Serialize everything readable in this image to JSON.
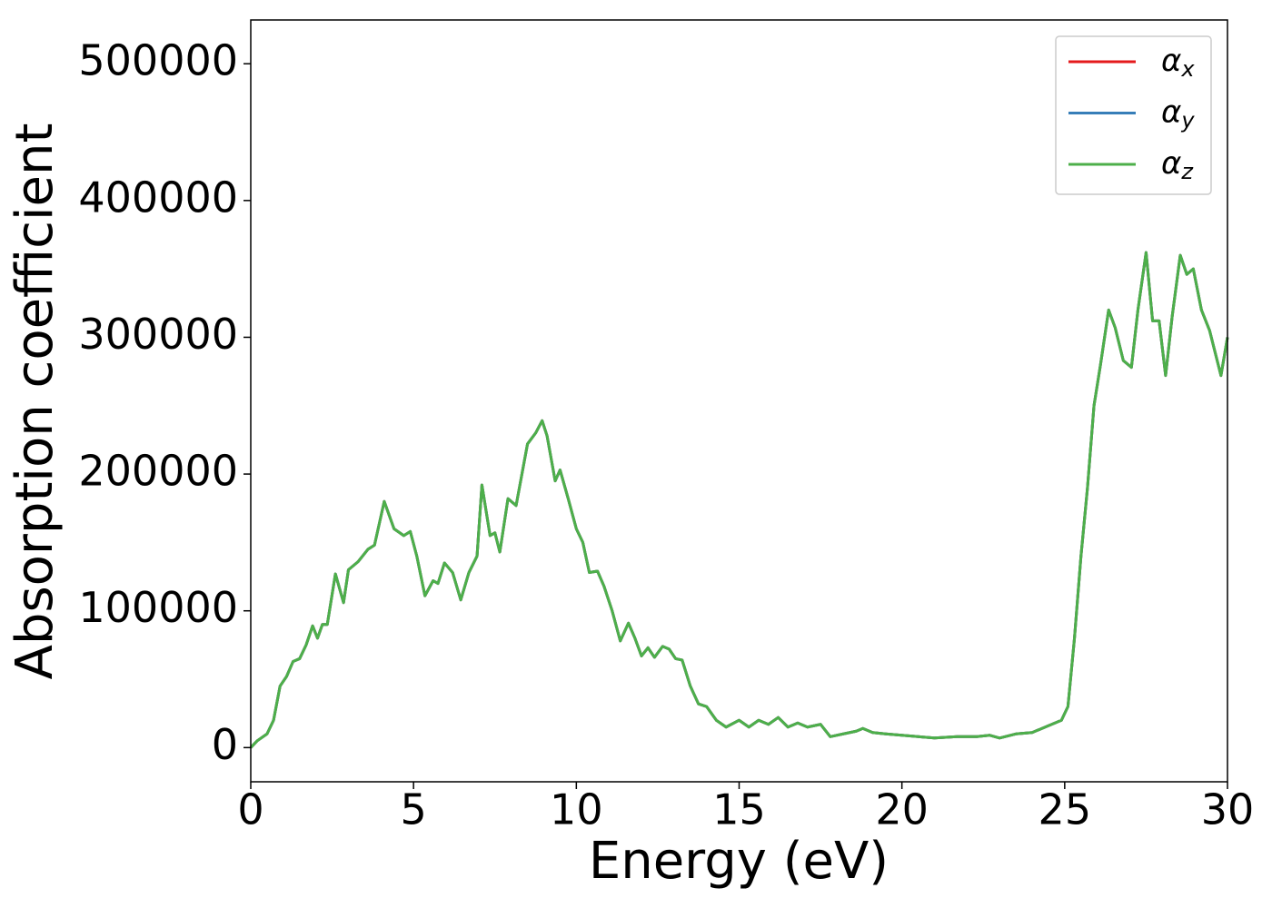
{
  "chart_data": {
    "type": "line",
    "x_label": "Energy (eV)",
    "y_label": "Absorption coefficient",
    "x": [
      0,
      0.2,
      0.5,
      0.7,
      0.9,
      1.1,
      1.3,
      1.5,
      1.7,
      1.9,
      2.05,
      2.2,
      2.35,
      2.6,
      2.85,
      3.0,
      3.3,
      3.6,
      3.8,
      4.1,
      4.4,
      4.7,
      4.9,
      5.1,
      5.35,
      5.6,
      5.75,
      5.95,
      6.2,
      6.45,
      6.7,
      6.95,
      7.1,
      7.35,
      7.5,
      7.65,
      7.9,
      8.15,
      8.5,
      8.75,
      8.95,
      9.1,
      9.35,
      9.5,
      9.75,
      10.0,
      10.2,
      10.4,
      10.65,
      10.85,
      11.1,
      11.35,
      11.6,
      11.8,
      12.0,
      12.2,
      12.4,
      12.65,
      12.85,
      13.05,
      13.25,
      13.5,
      13.75,
      14.0,
      14.3,
      14.6,
      15.0,
      15.3,
      15.6,
      15.9,
      16.2,
      16.5,
      16.8,
      17.1,
      17.5,
      17.8,
      18.2,
      18.6,
      18.8,
      19.1,
      19.5,
      20.0,
      20.5,
      21.0,
      21.7,
      22.3,
      22.7,
      23.0,
      23.5,
      24.0,
      24.5,
      24.9,
      25.1,
      25.3,
      25.5,
      25.7,
      25.9,
      26.1,
      26.35,
      26.55,
      26.8,
      27.05,
      27.25,
      27.5,
      27.7,
      27.9,
      28.1,
      28.3,
      28.55,
      28.75,
      28.95,
      29.2,
      29.45,
      29.8,
      30.0
    ],
    "series": [
      {
        "name": "αx",
        "color": "#e41a1c",
        "values": [
          0,
          5000,
          10000,
          20000,
          45000,
          52000,
          63000,
          65000,
          75000,
          89000,
          80000,
          90000,
          90000,
          127000,
          106000,
          130000,
          136000,
          145000,
          148000,
          180000,
          160000,
          155000,
          158000,
          140000,
          111000,
          122000,
          120000,
          135000,
          128000,
          108000,
          128000,
          140000,
          192000,
          155000,
          157000,
          143000,
          182000,
          177000,
          222000,
          230000,
          239000,
          228000,
          195000,
          203000,
          182000,
          160000,
          150000,
          128000,
          129000,
          118000,
          100000,
          78000,
          91000,
          80000,
          67000,
          73000,
          66000,
          74000,
          72000,
          65000,
          64000,
          45000,
          32000,
          30000,
          20000,
          15000,
          20000,
          15000,
          20000,
          17000,
          22000,
          15000,
          18000,
          15000,
          17000,
          8000,
          10000,
          12000,
          14000,
          11000,
          10000,
          9000,
          8000,
          7000,
          8000,
          8000,
          9000,
          7000,
          10000,
          11000,
          16000,
          20000,
          30000,
          80000,
          140000,
          190000,
          250000,
          280000,
          320000,
          307000,
          283000,
          278000,
          320000,
          362000,
          312000,
          312000,
          272000,
          315000,
          360000,
          346000,
          350000,
          320000,
          305000,
          272000,
          300000
        ]
      },
      {
        "name": "αy",
        "color": "#377eb8",
        "values": [
          0,
          5000,
          10000,
          20000,
          45000,
          52000,
          63000,
          65000,
          75000,
          89000,
          80000,
          90000,
          90000,
          127000,
          106000,
          130000,
          136000,
          145000,
          148000,
          180000,
          160000,
          155000,
          158000,
          140000,
          111000,
          122000,
          120000,
          135000,
          128000,
          108000,
          128000,
          140000,
          192000,
          155000,
          157000,
          143000,
          182000,
          177000,
          222000,
          230000,
          239000,
          228000,
          195000,
          203000,
          182000,
          160000,
          150000,
          128000,
          129000,
          118000,
          100000,
          78000,
          91000,
          80000,
          67000,
          73000,
          66000,
          74000,
          72000,
          65000,
          64000,
          45000,
          32000,
          30000,
          20000,
          15000,
          20000,
          15000,
          20000,
          17000,
          22000,
          15000,
          18000,
          15000,
          17000,
          8000,
          10000,
          12000,
          14000,
          11000,
          10000,
          9000,
          8000,
          7000,
          8000,
          8000,
          9000,
          7000,
          10000,
          11000,
          16000,
          20000,
          30000,
          80000,
          140000,
          190000,
          250000,
          280000,
          320000,
          307000,
          283000,
          278000,
          320000,
          362000,
          312000,
          312000,
          272000,
          315000,
          360000,
          346000,
          350000,
          320000,
          305000,
          272000,
          300000
        ]
      },
      {
        "name": "αz",
        "color": "#4daf4a",
        "values": [
          0,
          5000,
          10000,
          20000,
          45000,
          52000,
          63000,
          65000,
          75000,
          89000,
          80000,
          90000,
          90000,
          127000,
          106000,
          130000,
          136000,
          145000,
          148000,
          180000,
          160000,
          155000,
          158000,
          140000,
          111000,
          122000,
          120000,
          135000,
          128000,
          108000,
          128000,
          140000,
          192000,
          155000,
          157000,
          143000,
          182000,
          177000,
          222000,
          230000,
          239000,
          228000,
          195000,
          203000,
          182000,
          160000,
          150000,
          128000,
          129000,
          118000,
          100000,
          78000,
          91000,
          80000,
          67000,
          73000,
          66000,
          74000,
          72000,
          65000,
          64000,
          45000,
          32000,
          30000,
          20000,
          15000,
          20000,
          15000,
          20000,
          17000,
          22000,
          15000,
          18000,
          15000,
          17000,
          8000,
          10000,
          12000,
          14000,
          11000,
          10000,
          9000,
          8000,
          7000,
          8000,
          8000,
          9000,
          7000,
          10000,
          11000,
          16000,
          20000,
          30000,
          80000,
          140000,
          190000,
          250000,
          280000,
          320000,
          307000,
          283000,
          278000,
          320000,
          362000,
          312000,
          312000,
          272000,
          315000,
          360000,
          346000,
          350000,
          320000,
          305000,
          272000,
          300000
        ]
      }
    ],
    "xlim": [
      0,
      30
    ],
    "xticks": [
      0,
      5,
      10,
      15,
      20,
      25,
      30
    ],
    "ylim": [
      -25000,
      532000
    ],
    "yticks": [
      0,
      100000,
      200000,
      300000,
      400000,
      500000
    ],
    "legend": "upper right"
  }
}
